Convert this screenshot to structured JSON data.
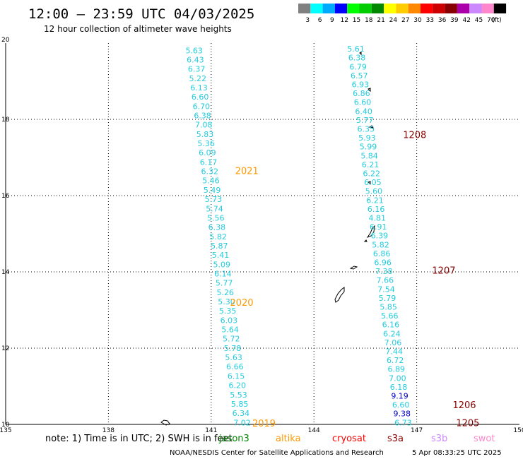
{
  "header": {
    "title": "12:00 – 23:59 UTC 04/03/2025",
    "subtitle": "12 hour collection of altimeter wave heights"
  },
  "colorbar": {
    "unit": "(ft)",
    "bins": [
      {
        "label": "3",
        "color": "#808080"
      },
      {
        "label": "6",
        "color": "#00ffff"
      },
      {
        "label": "9",
        "color": "#00aaff"
      },
      {
        "label": "12",
        "color": "#0000ff"
      },
      {
        "label": "15",
        "color": "#00ff00"
      },
      {
        "label": "18",
        "color": "#00cc00"
      },
      {
        "label": "21",
        "color": "#008800"
      },
      {
        "label": "24",
        "color": "#ffff00"
      },
      {
        "label": "27",
        "color": "#ffcc00"
      },
      {
        "label": "30",
        "color": "#ff8800"
      },
      {
        "label": "33",
        "color": "#ff0000"
      },
      {
        "label": "36",
        "color": "#cc0000"
      },
      {
        "label": "39",
        "color": "#880000"
      },
      {
        "label": "42",
        "color": "#aa00aa"
      },
      {
        "label": "45",
        "color": "#cc88ff"
      },
      {
        "label": "70",
        "color": "#ff88cc"
      },
      {
        "label": "",
        "color": "#000000"
      }
    ]
  },
  "map_extent": {
    "lon": [
      135,
      150
    ],
    "lat": [
      10,
      20
    ]
  },
  "axes": {
    "lon_ticks": [
      "135",
      "138",
      "141",
      "144",
      "147",
      "150"
    ],
    "lat_ticks": [
      "20",
      "18",
      "16",
      "14",
      "12",
      "10"
    ]
  },
  "tracks": [
    {
      "pass_label": "2021",
      "pass_color": "#ff9900",
      "pass_lon": 141.7,
      "pass_lat": 16.66,
      "lon_start": 140.25,
      "lat_start": 19.81,
      "lon_end": 141.65,
      "lat_end": 10.05,
      "color": "#22ccdd",
      "values": [
        "5.63",
        "6.43",
        "6.37",
        "5.22",
        "6.13",
        "6.60",
        "6.70",
        "6.38",
        "7.08",
        "5.83",
        "5.36",
        "6.09",
        "6.17",
        "6.32",
        "5.46",
        "5.49",
        "5.73",
        "5.74",
        "5.56",
        "6.38",
        "5.82",
        "5.87",
        "5.41",
        "5.09",
        "6.14",
        "5.77",
        "5.26",
        "5.30",
        "5.35",
        "6.03",
        "5.64",
        "5.72",
        "5.78",
        "5.63",
        "6.66",
        "6.15",
        "6.20",
        "5.53",
        "5.85",
        "6.34",
        "7.02"
      ]
    },
    {
      "pass_label": "2020",
      "pass_color": "#ff9900",
      "pass_lon": 141.55,
      "pass_lat": 13.2,
      "lon_start": 0,
      "lat_start": 0,
      "lon_end": 0,
      "lat_end": 0,
      "color": "#22ccdd",
      "values": []
    },
    {
      "pass_label": "2019",
      "pass_color": "#ff9900",
      "pass_lon": 142.2,
      "pass_lat": 10.04,
      "lon_start": 0,
      "lat_start": 0,
      "lon_end": 0,
      "lat_end": 0,
      "color": "#22ccdd",
      "values": []
    },
    {
      "pass_label": "1208",
      "pass_color": "#880000",
      "pass_lon": 146.6,
      "pass_lat": 17.6,
      "lon_start": 144.97,
      "lat_start": 19.85,
      "lon_end": 146.35,
      "lat_end": 10.05,
      "color": "#22ccdd",
      "values": [
        "5.61",
        "6.38",
        "6.79",
        "6.57",
        "6.93",
        "6.86",
        "6.60",
        "6.40",
        "5.77",
        "6.35",
        "5.93",
        "5.99",
        "5.84",
        "6.21",
        "6.22",
        "6.05",
        "5.60",
        "6.21",
        "6.16",
        "4.81",
        "6.91",
        "6.39",
        "5.82",
        "6.86",
        "6.96",
        "7.38",
        "7.66",
        "7.54",
        "5.79",
        "5.85",
        "5.66",
        "6.16",
        "6.24",
        "7.06",
        "7.44",
        "6.72",
        "6.89",
        "7.00",
        "6.18",
        "9.19",
        "6.60",
        "9.38",
        "6.73"
      ]
    },
    {
      "pass_label": "1207",
      "pass_color": "#880000",
      "pass_lon": 147.45,
      "pass_lat": 14.05,
      "lon_start": 0,
      "lat_start": 0,
      "lon_end": 0,
      "lat_end": 0,
      "color": "#22ccdd",
      "values": []
    },
    {
      "pass_label": "1206",
      "pass_color": "#880000",
      "pass_lon": 148.05,
      "pass_lat": 10.52,
      "lon_start": 0,
      "lat_start": 0,
      "lon_end": 0,
      "lat_end": 0,
      "color": "#22ccdd",
      "values": []
    },
    {
      "pass_label": "1205",
      "pass_color": "#880000",
      "pass_lon": 148.15,
      "pass_lat": 10.05,
      "lon_start": 0,
      "lat_start": 0,
      "lon_end": 0,
      "lat_end": 0,
      "color": "#22ccdd",
      "values": []
    }
  ],
  "footer": {
    "note": "note: 1) Time is in UTC; 2) SWH is in feet",
    "satellites": [
      {
        "name": "jason3",
        "color": "#008800"
      },
      {
        "name": "altika",
        "color": "#ff9900"
      },
      {
        "name": "cryosat",
        "color": "#ff0000"
      },
      {
        "name": "s3a",
        "color": "#880000"
      },
      {
        "name": "s3b",
        "color": "#cc88ff"
      },
      {
        "name": "swot",
        "color": "#ff88cc"
      }
    ],
    "credit": "NOAA/NESDIS Center for Satellite Applications and Research",
    "timestamp": "5 Apr 08:33:25 UTC 2025"
  }
}
